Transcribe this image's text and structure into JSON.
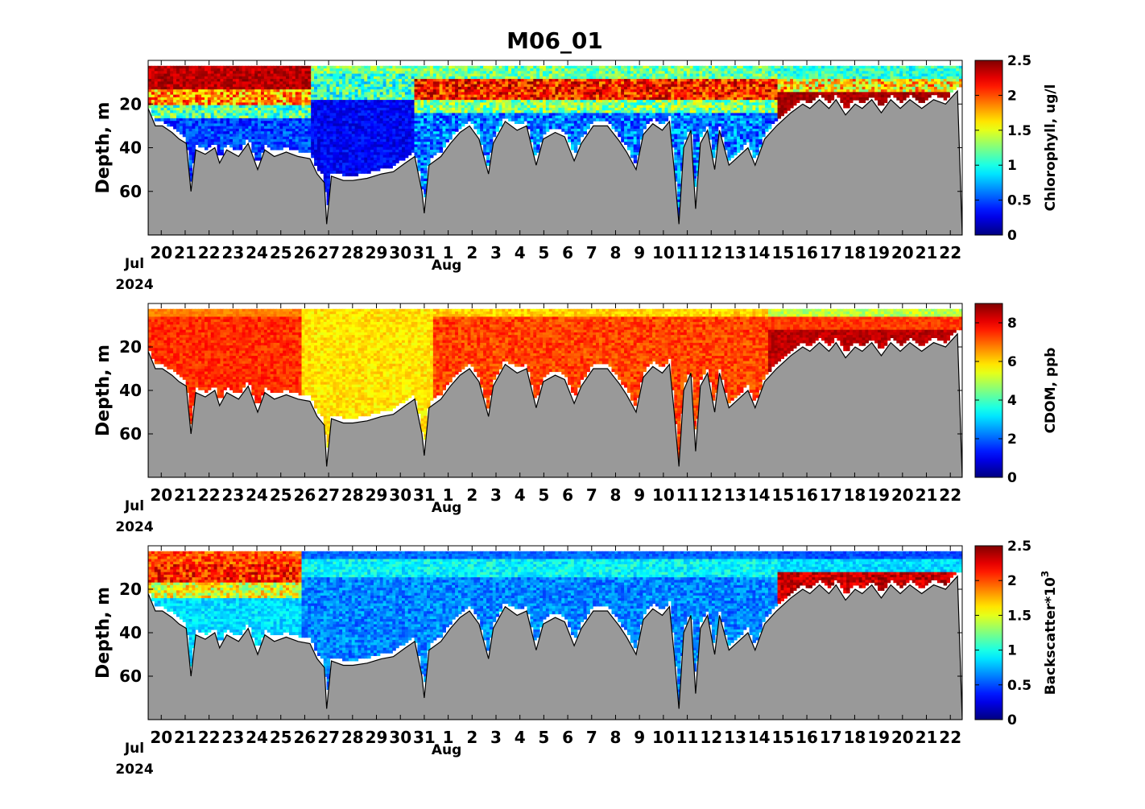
{
  "title": "M06_01",
  "chart_data": [
    {
      "type": "heatmap",
      "ylabel": "Depth, m",
      "colorbar_label": "Chlorophyll, ug/l",
      "colorbar_ticks": [
        "0",
        "0.5",
        "1",
        "1.5",
        "2",
        "2.5"
      ],
      "clim": [
        0,
        2.5
      ],
      "colormap": "jet",
      "ylim": [
        80,
        0
      ],
      "yticks": [
        "20",
        "40",
        "60"
      ],
      "xtick_labels": [
        "20",
        "21",
        "22",
        "23",
        "24",
        "25",
        "26",
        "27",
        "28",
        "29",
        "30",
        "31",
        "1",
        "2",
        "3",
        "4",
        "5",
        "6",
        "7",
        "8",
        "9",
        "10",
        "11",
        "12",
        "13",
        "14",
        "15",
        "16",
        "17",
        "18",
        "19",
        "20",
        "21",
        "22"
      ],
      "xaxis_month_start": "Jul",
      "xaxis_year": "2024",
      "xaxis_month_next": "Aug",
      "profile": "chl"
    },
    {
      "type": "heatmap",
      "ylabel": "Depth, m",
      "colorbar_label": "CDOM, ppb",
      "colorbar_ticks": [
        "0",
        "2",
        "4",
        "6",
        "8"
      ],
      "clim": [
        0,
        9
      ],
      "colormap": "jet",
      "ylim": [
        80,
        0
      ],
      "yticks": [
        "20",
        "40",
        "60"
      ],
      "xtick_labels": [
        "20",
        "21",
        "22",
        "23",
        "24",
        "25",
        "26",
        "27",
        "28",
        "29",
        "30",
        "31",
        "1",
        "2",
        "3",
        "4",
        "5",
        "6",
        "7",
        "8",
        "9",
        "10",
        "11",
        "12",
        "13",
        "14",
        "15",
        "16",
        "17",
        "18",
        "19",
        "20",
        "21",
        "22"
      ],
      "xaxis_month_start": "Jul",
      "xaxis_year": "2024",
      "xaxis_month_next": "Aug",
      "profile": "cdom"
    },
    {
      "type": "heatmap",
      "ylabel": "Depth, m",
      "colorbar_label": "Backscatter*10",
      "colorbar_label_sup": "3",
      "colorbar_ticks": [
        "0",
        "0.5",
        "1",
        "1.5",
        "2",
        "2.5"
      ],
      "clim": [
        0,
        2.5
      ],
      "colormap": "jet",
      "ylim": [
        80,
        0
      ],
      "yticks": [
        "20",
        "40",
        "60"
      ],
      "xtick_labels": [
        "20",
        "21",
        "22",
        "23",
        "24",
        "25",
        "26",
        "27",
        "28",
        "29",
        "30",
        "31",
        "1",
        "2",
        "3",
        "4",
        "5",
        "6",
        "7",
        "8",
        "9",
        "10",
        "11",
        "12",
        "13",
        "14",
        "15",
        "16",
        "17",
        "18",
        "19",
        "20",
        "21",
        "22"
      ],
      "xaxis_month_start": "Jul",
      "xaxis_year": "2024",
      "xaxis_month_next": "Aug",
      "profile": "bbp"
    }
  ],
  "bottom_depth_m": [
    [
      0,
      22
    ],
    [
      0.3,
      30
    ],
    [
      0.6,
      30
    ],
    [
      1.0,
      33
    ],
    [
      1.3,
      36
    ],
    [
      1.6,
      38
    ],
    [
      1.8,
      60
    ],
    [
      2.0,
      41
    ],
    [
      2.4,
      43
    ],
    [
      2.8,
      40
    ],
    [
      3.0,
      47
    ],
    [
      3.3,
      41
    ],
    [
      3.8,
      44
    ],
    [
      4.2,
      38
    ],
    [
      4.6,
      50
    ],
    [
      4.9,
      41
    ],
    [
      5.3,
      44
    ],
    [
      5.8,
      42
    ],
    [
      6.3,
      44
    ],
    [
      6.8,
      45
    ],
    [
      7.1,
      52
    ],
    [
      7.4,
      56
    ],
    [
      7.5,
      75
    ],
    [
      7.7,
      53
    ],
    [
      8.2,
      55
    ],
    [
      8.6,
      55
    ],
    [
      9.2,
      54
    ],
    [
      9.8,
      52
    ],
    [
      10.3,
      51
    ],
    [
      10.8,
      47
    ],
    [
      11.2,
      44
    ],
    [
      11.5,
      60
    ],
    [
      11.6,
      70
    ],
    [
      11.8,
      48
    ],
    [
      12.3,
      44
    ],
    [
      12.7,
      38
    ],
    [
      13.1,
      33
    ],
    [
      13.5,
      30
    ],
    [
      13.9,
      36
    ],
    [
      14.3,
      52
    ],
    [
      14.5,
      38
    ],
    [
      15.0,
      28
    ],
    [
      15.5,
      32
    ],
    [
      15.9,
      30
    ],
    [
      16.3,
      48
    ],
    [
      16.6,
      36
    ],
    [
      17.1,
      33
    ],
    [
      17.5,
      35
    ],
    [
      17.9,
      46
    ],
    [
      18.2,
      38
    ],
    [
      18.7,
      30
    ],
    [
      19.3,
      30
    ],
    [
      19.8,
      37
    ],
    [
      20.1,
      42
    ],
    [
      20.5,
      50
    ],
    [
      20.8,
      34
    ],
    [
      21.2,
      29
    ],
    [
      21.6,
      32
    ],
    [
      21.9,
      28
    ],
    [
      22.1,
      50
    ],
    [
      22.3,
      75
    ],
    [
      22.5,
      40
    ],
    [
      22.8,
      32
    ],
    [
      23.0,
      68
    ],
    [
      23.2,
      38
    ],
    [
      23.5,
      32
    ],
    [
      23.8,
      50
    ],
    [
      24.0,
      32
    ],
    [
      24.4,
      48
    ],
    [
      24.8,
      44
    ],
    [
      25.2,
      40
    ],
    [
      25.5,
      48
    ],
    [
      25.9,
      36
    ],
    [
      26.4,
      30
    ],
    [
      27.0,
      24
    ],
    [
      27.5,
      20
    ],
    [
      27.8,
      22
    ],
    [
      28.2,
      18
    ],
    [
      28.6,
      22
    ],
    [
      28.9,
      18
    ],
    [
      29.3,
      25
    ],
    [
      29.7,
      20
    ],
    [
      30.0,
      22
    ],
    [
      30.4,
      18
    ],
    [
      30.8,
      24
    ],
    [
      31.2,
      18
    ],
    [
      31.6,
      22
    ],
    [
      32.0,
      18
    ],
    [
      32.5,
      22
    ],
    [
      33.0,
      18
    ],
    [
      33.5,
      20
    ],
    [
      34.0,
      14
    ]
  ]
}
